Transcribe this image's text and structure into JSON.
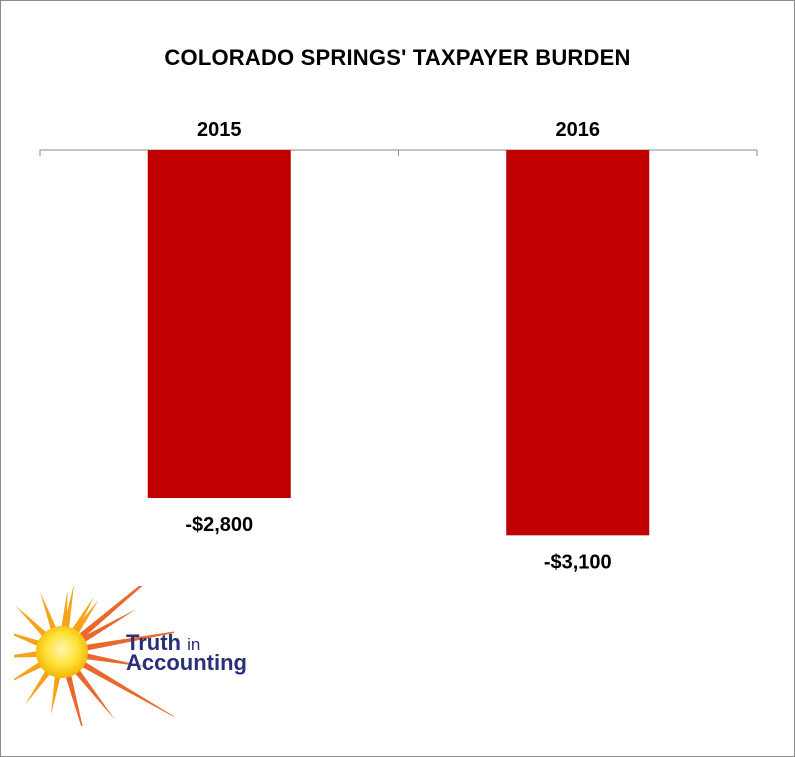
{
  "chart_data": {
    "type": "bar",
    "title": "COLORADO SPRINGS' TAXPAYER BURDEN",
    "categories": [
      "2015",
      "2016"
    ],
    "values": [
      -2800,
      -3100
    ],
    "value_labels": [
      "-$2,800",
      "-$3,100"
    ],
    "xlabel": "",
    "ylabel": "",
    "ylim": [
      -4000,
      0
    ],
    "grid": false,
    "legend": "none",
    "x_axis_position": "top",
    "bar_color": "#c00000"
  },
  "logo": {
    "line1_main": "Truth",
    "line1_small": "in",
    "line2": "Accounting"
  }
}
